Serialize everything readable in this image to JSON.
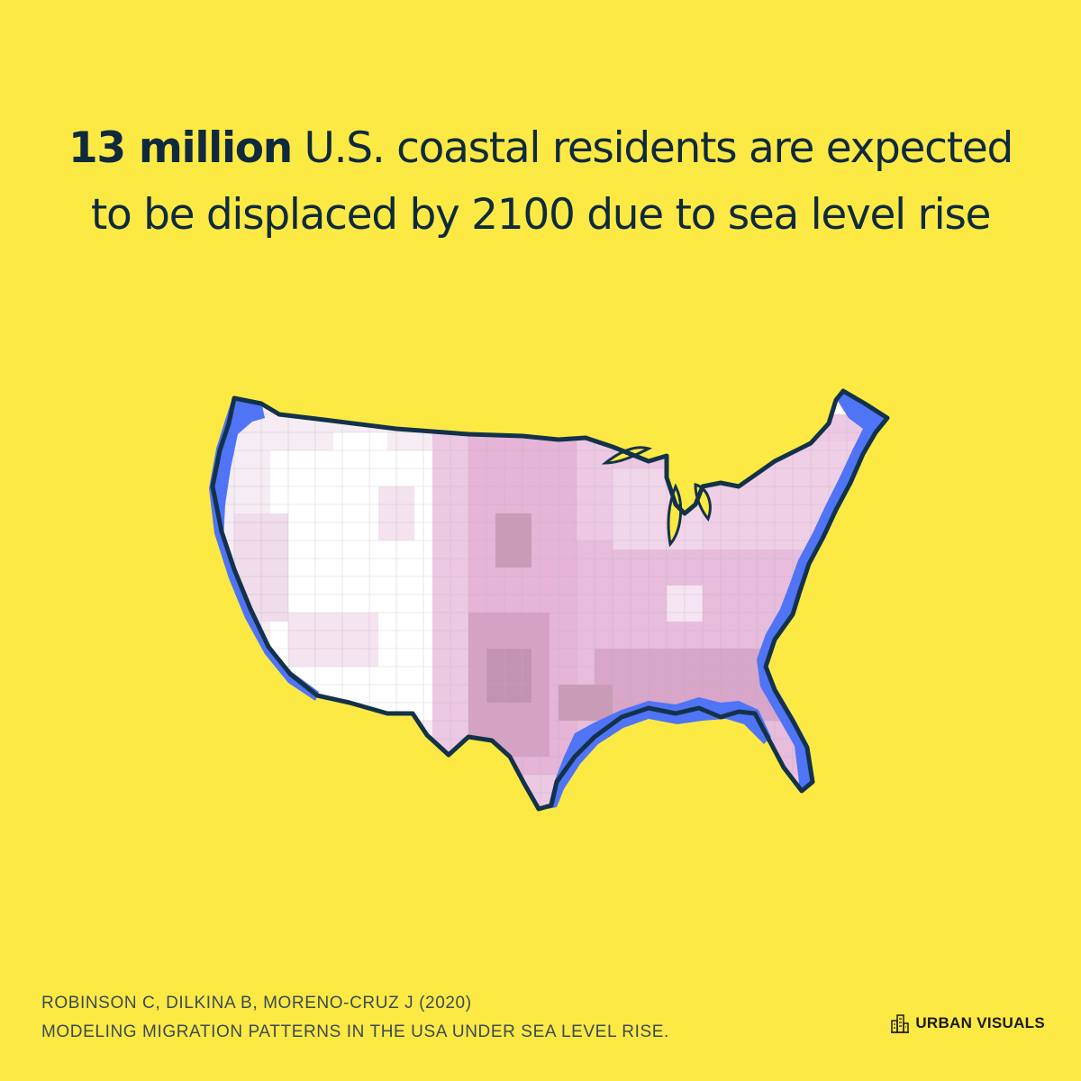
{
  "headline": {
    "bold": "13 million",
    "rest": " U.S. coastal residents are expected to be displaced by 2100 due to sea level rise"
  },
  "map": {
    "region": "Contiguous United States",
    "coastal_color": "#4F74F5",
    "outline_color": "#13324a",
    "county_palette": [
      "#ffffff",
      "#f2dcec",
      "#e9bcdc",
      "#dd9cc7",
      "#c99bb7"
    ]
  },
  "citation": {
    "line1": "ROBINSON C, DILKINA B, MORENO-CRUZ J (2020)",
    "line2": "MODELING MIGRATION PATTERNS IN THE USA UNDER SEA LEVEL RISE."
  },
  "brand": {
    "name": "URBAN VISUALS",
    "icon": "buildings-icon"
  },
  "colors": {
    "background": "#FDE944",
    "text": "#0f2a3c"
  }
}
